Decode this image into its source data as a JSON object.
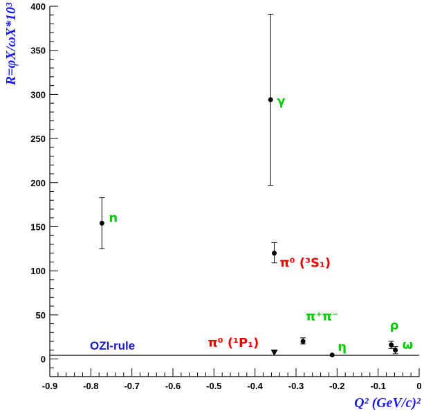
{
  "chart_data": {
    "type": "scatter",
    "xlabel": "Q² (GeV/c)²",
    "ylabel": "R=φX/ωX*10³",
    "xlim": [
      -0.9,
      0.0
    ],
    "ylim": [
      -20,
      400
    ],
    "x_ticks": [
      "-0.9",
      "-0.8",
      "-0.7",
      "-0.6",
      "-0.5",
      "-0.4",
      "-0.3",
      "-0.2",
      "-0.1",
      "0"
    ],
    "y_ticks": [
      "0",
      "50",
      "100",
      "150",
      "200",
      "250",
      "300",
      "350",
      "400"
    ],
    "grid": false,
    "points": [
      {
        "label": "n",
        "x": -0.773,
        "y": 154,
        "err_low": 29,
        "err_high": 29,
        "marker": "circle",
        "label_color": "#00cc00"
      },
      {
        "label": "γ",
        "x": -0.362,
        "y": 294,
        "err_low": 97,
        "err_high": 97,
        "marker": "circle",
        "label_color": "#00cc00"
      },
      {
        "label": "π⁰ (³S₁)",
        "x": -0.353,
        "y": 120,
        "err_low": 11,
        "err_high": 12,
        "marker": "circle",
        "label_color": "#ee0000"
      },
      {
        "label": "π⁰ (¹P₁)",
        "x": -0.353,
        "y": 7.5,
        "err_low": 0,
        "err_high": 0,
        "marker": "triangle-down",
        "label_color": "#ee0000"
      },
      {
        "label": "π⁺π⁻",
        "x": -0.283,
        "y": 20,
        "err_low": 3,
        "err_high": 4,
        "marker": "circle",
        "label_color": "#00cc00"
      },
      {
        "label": "η",
        "x": -0.212,
        "y": 4.5,
        "err_low": 0,
        "err_high": 0,
        "marker": "circle",
        "label_color": "#00cc00"
      },
      {
        "label": "ρ",
        "x": -0.068,
        "y": 16,
        "err_low": 4,
        "err_high": 4,
        "marker": "circle",
        "label_color": "#00cc00"
      },
      {
        "label": "ω",
        "x": -0.058,
        "y": 10,
        "err_low": 4,
        "err_high": 4,
        "marker": "circle",
        "label_color": "#00cc00"
      }
    ],
    "reference_line": {
      "label": "OZI-rule",
      "y": 4.2,
      "color": "#1a1acc"
    },
    "colors": {
      "axis": "#000000",
      "axis_title": "#1a1aff"
    }
  }
}
